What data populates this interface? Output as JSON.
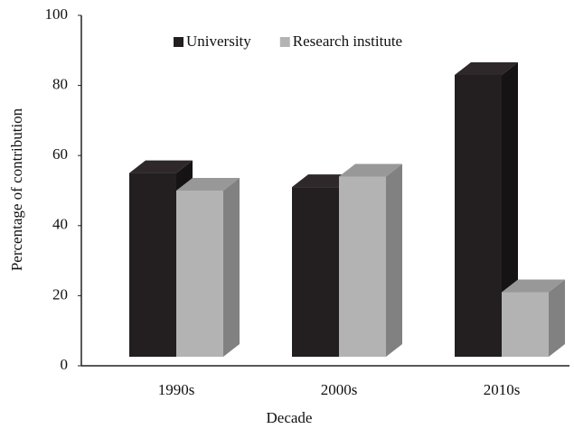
{
  "chart_data": {
    "type": "bar3d",
    "x_label": "Decade",
    "y_label": "Percentage of contribution",
    "categories": [
      "1990s",
      "2000s",
      "2010s"
    ],
    "series": [
      {
        "name": "University",
        "color": "#231f20",
        "values": [
          55,
          51,
          83
        ]
      },
      {
        "name": "Research institute",
        "color": "#b3b3b3",
        "values": [
          50,
          54,
          21
        ]
      }
    ],
    "ylim": [
      0,
      100
    ],
    "yticks": [
      0,
      20,
      40,
      60,
      80,
      100
    ],
    "grid": false,
    "legend": "top"
  }
}
